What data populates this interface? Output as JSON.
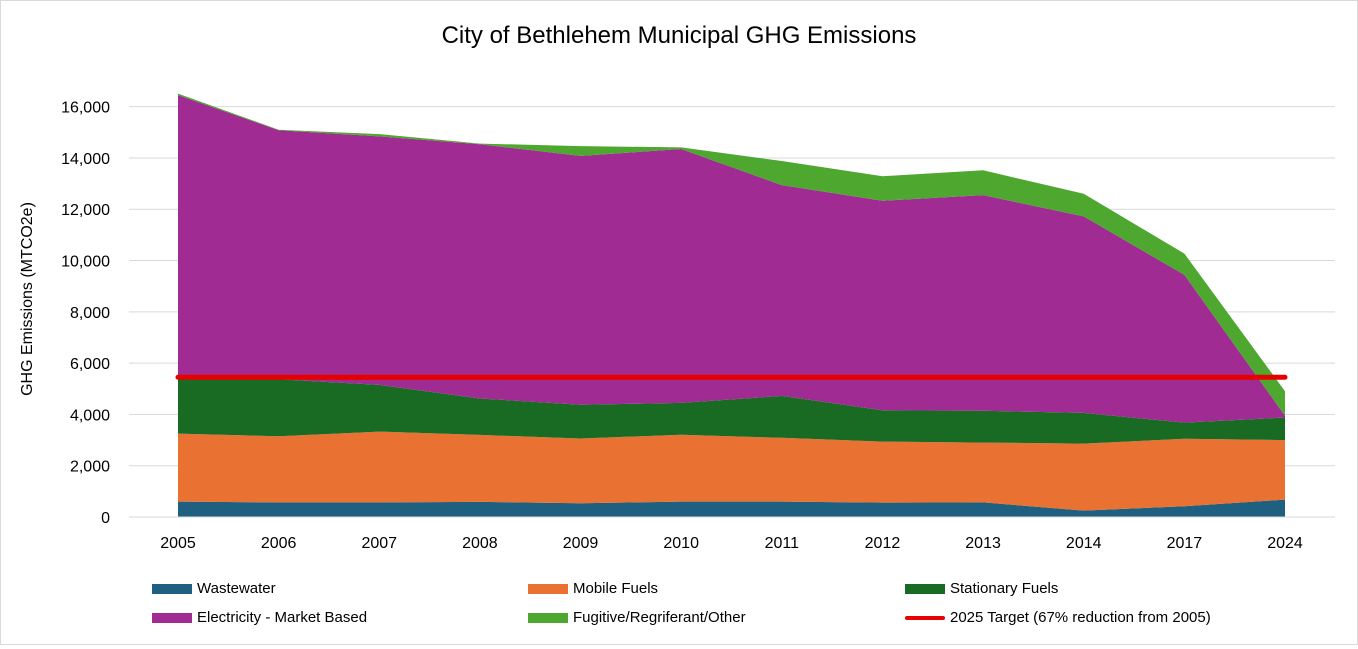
{
  "chart_data": {
    "type": "area",
    "stacked": true,
    "title": "City of Bethlehem Municipal GHG Emissions",
    "xlabel": "",
    "ylabel": "GHG Emissions (MTCO2e)",
    "ylim": [
      0,
      17000
    ],
    "yticks": [
      0,
      2000,
      4000,
      6000,
      8000,
      10000,
      12000,
      14000,
      16000
    ],
    "ytick_labels": [
      "0",
      "2,000",
      "4,000",
      "6,000",
      "8,000",
      "10,000",
      "12,000",
      "14,000",
      "16,000"
    ],
    "grid": true,
    "legend_position": "bottom",
    "categories": [
      "2005",
      "2006",
      "2007",
      "2008",
      "2009",
      "2010",
      "2011",
      "2012",
      "2013",
      "2014",
      "2017",
      "2024"
    ],
    "series": [
      {
        "name": "Wastewater",
        "color": "#1f5f7f",
        "values": [
          600,
          570,
          570,
          590,
          540,
          600,
          600,
          560,
          570,
          250,
          420,
          680
        ]
      },
      {
        "name": "Mobile Fuels",
        "color": "#e97132",
        "values": [
          2650,
          2580,
          2760,
          2610,
          2520,
          2610,
          2490,
          2380,
          2330,
          2610,
          2630,
          2320
        ]
      },
      {
        "name": "Stationary Fuels",
        "color": "#196b24",
        "values": [
          2240,
          2220,
          1820,
          1420,
          1320,
          1240,
          1630,
          1220,
          1240,
          1200,
          630,
          880
        ]
      },
      {
        "name": "Electricity - Market Based",
        "color": "#a02b93",
        "values": [
          10960,
          9710,
          9690,
          9910,
          9700,
          9900,
          8220,
          8170,
          8410,
          7660,
          5760,
          70
        ]
      },
      {
        "name": "Fugitive/Regriferant/Other",
        "color": "#4ea72e",
        "values": [
          60,
          20,
          90,
          30,
          380,
          60,
          940,
          960,
          970,
          880,
          830,
          950
        ]
      }
    ],
    "target_line": {
      "name": "2025 Target (67% reduction from 2005)",
      "color": "#e60000",
      "value": 5450
    }
  }
}
